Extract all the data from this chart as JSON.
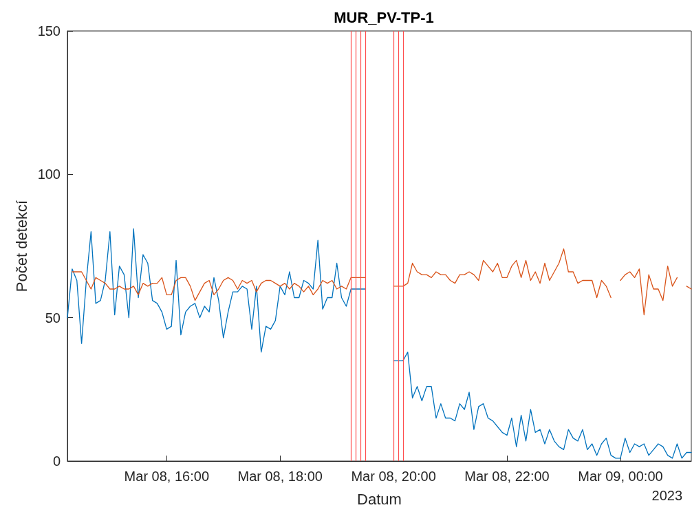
{
  "chart_data": {
    "type": "line",
    "title": "MUR_PV-TP-1",
    "xlabel": "Datum",
    "ylabel": "Počet detekcí",
    "annotations": [
      "2023"
    ],
    "x": [
      "2023-03-08T14:15",
      "2023-03-08T14:20",
      "2023-03-08T14:25",
      "2023-03-08T14:30",
      "2023-03-08T14:35",
      "2023-03-08T14:40",
      "2023-03-08T14:45",
      "2023-03-08T14:50",
      "2023-03-08T14:55",
      "2023-03-08T15:00",
      "2023-03-08T15:05",
      "2023-03-08T15:10",
      "2023-03-08T15:15",
      "2023-03-08T15:20",
      "2023-03-08T15:25",
      "2023-03-08T15:30",
      "2023-03-08T15:35",
      "2023-03-08T15:40",
      "2023-03-08T15:45",
      "2023-03-08T15:50",
      "2023-03-08T15:55",
      "2023-03-08T16:00",
      "2023-03-08T16:05",
      "2023-03-08T16:10",
      "2023-03-08T16:15",
      "2023-03-08T16:20",
      "2023-03-08T16:25",
      "2023-03-08T16:30",
      "2023-03-08T16:35",
      "2023-03-08T16:40",
      "2023-03-08T16:45",
      "2023-03-08T16:50",
      "2023-03-08T16:55",
      "2023-03-08T17:00",
      "2023-03-08T17:05",
      "2023-03-08T17:10",
      "2023-03-08T17:15",
      "2023-03-08T17:20",
      "2023-03-08T17:25",
      "2023-03-08T17:30",
      "2023-03-08T17:35",
      "2023-03-08T17:40",
      "2023-03-08T17:45",
      "2023-03-08T17:50",
      "2023-03-08T17:55",
      "2023-03-08T18:00",
      "2023-03-08T18:05",
      "2023-03-08T18:10",
      "2023-03-08T18:15",
      "2023-03-08T18:20",
      "2023-03-08T18:25",
      "2023-03-08T18:30",
      "2023-03-08T18:35",
      "2023-03-08T18:40",
      "2023-03-08T18:45",
      "2023-03-08T18:50",
      "2023-03-08T18:55",
      "2023-03-08T19:00",
      "2023-03-08T19:05",
      "2023-03-08T19:10",
      "2023-03-08T19:15",
      "2023-03-08T19:20",
      "2023-03-08T19:25",
      "2023-03-08T19:30",
      "2023-03-08T19:35",
      "2023-03-08T19:40",
      "2023-03-08T19:45",
      "2023-03-08T19:50",
      "2023-03-08T19:55",
      "2023-03-08T20:00",
      "2023-03-08T20:05",
      "2023-03-08T20:10",
      "2023-03-08T20:15",
      "2023-03-08T20:20",
      "2023-03-08T20:25",
      "2023-03-08T20:30",
      "2023-03-08T20:35",
      "2023-03-08T20:40",
      "2023-03-08T20:45",
      "2023-03-08T20:50",
      "2023-03-08T20:55",
      "2023-03-08T21:00",
      "2023-03-08T21:05",
      "2023-03-08T21:10",
      "2023-03-08T21:15",
      "2023-03-08T21:20",
      "2023-03-08T21:25",
      "2023-03-08T21:30",
      "2023-03-08T21:35",
      "2023-03-08T21:40",
      "2023-03-08T21:45",
      "2023-03-08T21:50",
      "2023-03-08T21:55",
      "2023-03-08T22:00",
      "2023-03-08T22:05",
      "2023-03-08T22:10",
      "2023-03-08T22:15",
      "2023-03-08T22:20",
      "2023-03-08T22:25",
      "2023-03-08T22:30",
      "2023-03-08T22:35",
      "2023-03-08T22:40",
      "2023-03-08T22:45",
      "2023-03-08T22:50",
      "2023-03-08T22:55",
      "2023-03-08T23:00",
      "2023-03-08T23:05",
      "2023-03-08T23:10",
      "2023-03-08T23:15",
      "2023-03-08T23:20",
      "2023-03-08T23:25",
      "2023-03-08T23:30",
      "2023-03-08T23:35",
      "2023-03-08T23:40",
      "2023-03-08T23:45",
      "2023-03-08T23:50",
      "2023-03-08T23:55",
      "2023-03-09T00:00",
      "2023-03-09T00:05",
      "2023-03-09T00:10",
      "2023-03-09T00:15",
      "2023-03-09T00:20",
      "2023-03-09T00:25",
      "2023-03-09T00:30",
      "2023-03-09T00:35",
      "2023-03-09T00:40",
      "2023-03-09T00:45",
      "2023-03-09T00:50",
      "2023-03-09T00:55",
      "2023-03-09T01:00",
      "2023-03-09T01:05",
      "2023-03-09T01:10",
      "2023-03-09T01:15"
    ],
    "series": [
      {
        "color": "#0072bd",
        "values": [
          50,
          67,
          63,
          41,
          63,
          80,
          55,
          56,
          63,
          80,
          51,
          68,
          65,
          50,
          81,
          57,
          72,
          69,
          56,
          55,
          52,
          46,
          47,
          70,
          44,
          52,
          54,
          55,
          50,
          54,
          52,
          64,
          56,
          43,
          52,
          59,
          59,
          61,
          60,
          46,
          61,
          38,
          47,
          46,
          49,
          61,
          58,
          66,
          57,
          57,
          63,
          62,
          60,
          77,
          53,
          57,
          57,
          69,
          57,
          54,
          60,
          60,
          60,
          60,
          null,
          null,
          null,
          null,
          null,
          35,
          35,
          35,
          38,
          22,
          26,
          21,
          26,
          26,
          15,
          20,
          15,
          15,
          14,
          20,
          18,
          24,
          11,
          19,
          20,
          15,
          14,
          12,
          10,
          9,
          15,
          5,
          16,
          7,
          18,
          10,
          11,
          6,
          11,
          7,
          5,
          4,
          11,
          8,
          7,
          11,
          4,
          6,
          2,
          6,
          8,
          2,
          1,
          1,
          8,
          3,
          6,
          5,
          6,
          2,
          4,
          6,
          5,
          2,
          1,
          6,
          1,
          3,
          3
        ]
      },
      {
        "color": "#d95319",
        "values": [
          null,
          66,
          66,
          66,
          63,
          60,
          64,
          63,
          62,
          60,
          60,
          61,
          60,
          60,
          61,
          58,
          62,
          61,
          62,
          62,
          64,
          58,
          58,
          63,
          64,
          64,
          61,
          56,
          59,
          62,
          63,
          58,
          60,
          63,
          64,
          63,
          60,
          63,
          62,
          63,
          59,
          62,
          63,
          63,
          62,
          61,
          62,
          60,
          62,
          61,
          59,
          61,
          58,
          60,
          63,
          62,
          63,
          60,
          61,
          60,
          64,
          64,
          64,
          64,
          null,
          null,
          null,
          null,
          null,
          61,
          61,
          61,
          62,
          69,
          66,
          65,
          65,
          64,
          66,
          65,
          65,
          63,
          62,
          65,
          65,
          66,
          65,
          63,
          70,
          68,
          66,
          69,
          64,
          64,
          68,
          70,
          64,
          70,
          63,
          66,
          62,
          69,
          63,
          66,
          69,
          74,
          66,
          66,
          62,
          63,
          63,
          63,
          57,
          63,
          61,
          57,
          null,
          63,
          65,
          66,
          64,
          67,
          51,
          65,
          60,
          60,
          56,
          68,
          61,
          64,
          null,
          61,
          60
        ]
      }
    ],
    "xlim": [
      "2023-03-08T14:15",
      "2023-03-09T01:15"
    ],
    "xticks": [
      {
        "value": "2023-03-08T16:00",
        "label": "Mar 08, 16:00"
      },
      {
        "value": "2023-03-08T18:00",
        "label": "Mar 08, 18:00"
      },
      {
        "value": "2023-03-08T20:00",
        "label": "Mar 08, 20:00"
      },
      {
        "value": "2023-03-08T22:00",
        "label": "Mar 08, 22:00"
      },
      {
        "value": "2023-03-09T00:00",
        "label": "Mar 09, 00:00"
      }
    ],
    "ylim": [
      0,
      150
    ],
    "yticks": [
      0,
      50,
      100,
      150
    ],
    "ref_lines": [
      {
        "axis": "x",
        "value": "2023-03-08T19:15",
        "color": "#ff4d4d"
      },
      {
        "axis": "x",
        "value": "2023-03-08T19:20",
        "color": "#ff4d4d"
      },
      {
        "axis": "x",
        "value": "2023-03-08T19:25",
        "color": "#ff4d4d"
      },
      {
        "axis": "x",
        "value": "2023-03-08T19:30",
        "color": "#ff4d4d"
      },
      {
        "axis": "x",
        "value": "2023-03-08T20:00",
        "color": "#ff4d4d"
      },
      {
        "axis": "x",
        "value": "2023-03-08T20:05",
        "color": "#ff4d4d"
      },
      {
        "axis": "x",
        "value": "2023-03-08T20:10",
        "color": "#ff4d4d"
      }
    ],
    "grid": false,
    "marker": "none",
    "line_style": "solid"
  }
}
